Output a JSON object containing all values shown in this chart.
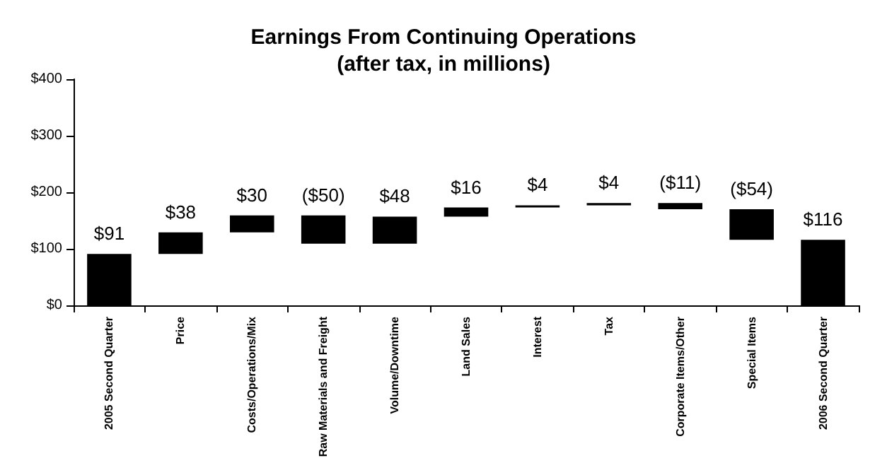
{
  "chart_data": {
    "type": "bar",
    "title": "Earnings From Continuing Operations\n(after tax, in millions)",
    "categories": [
      "2005 Second Quarter",
      "Price",
      "Costs/Operations/Mix",
      "Raw Materials and Freight",
      "Volume/Downtime",
      "Land Sales",
      "Interest",
      "Tax",
      "Corporate Items/Other",
      "Special Items",
      "2006 Second Quarter"
    ],
    "values": [
      91,
      38,
      30,
      -50,
      48,
      16,
      4,
      4,
      -11,
      -54,
      116
    ],
    "base": [
      0,
      91,
      129,
      159,
      109,
      157,
      173,
      177,
      181,
      170,
      0
    ],
    "value_labels": [
      "$91",
      "$38",
      "$30",
      "($50)",
      "$48",
      "$16",
      "$4",
      "$4",
      "($11)",
      "($54)",
      "$116"
    ],
    "color": "#000000",
    "ylim": [
      0,
      400
    ],
    "yticks": [
      {
        "value": 0,
        "label": "$0"
      },
      {
        "value": 100,
        "label": "$100"
      },
      {
        "value": 200,
        "label": "$200"
      },
      {
        "value": 300,
        "label": "$300"
      },
      {
        "value": 400,
        "label": "$400"
      }
    ],
    "grid": false
  }
}
